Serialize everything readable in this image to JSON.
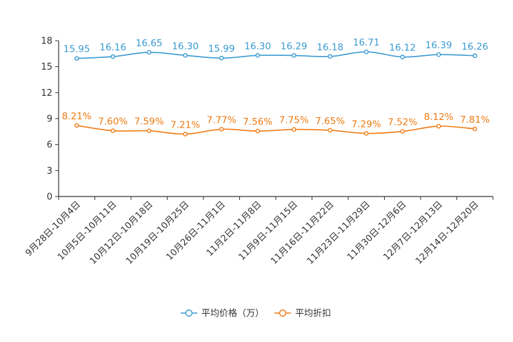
{
  "chart_data": {
    "type": "line",
    "categories": [
      "9月28日-10月4日",
      "10月5日-10月11日",
      "10月12日-10月18日",
      "10月19日-10月25日",
      "10月26日-11月1日",
      "11月2日-11月8日",
      "11月9日-11月15日",
      "11月16日-11月22日",
      "11月23日-11月29日",
      "11月30日-12月6日",
      "12月7日-12月13日",
      "12月14日-12月20日"
    ],
    "series": [
      {
        "name": "平均价格（万）",
        "color": "#3a9ad1",
        "values": [
          15.95,
          16.16,
          16.65,
          16.3,
          15.99,
          16.3,
          16.29,
          16.18,
          16.71,
          16.12,
          16.39,
          16.26
        ],
        "labels": [
          "15.95",
          "16.16",
          "16.65",
          "16.30",
          "15.99",
          "16.30",
          "16.29",
          "16.18",
          "16.71",
          "16.12",
          "16.39",
          "16.26"
        ]
      },
      {
        "name": "平均折扣",
        "color": "#f07a12",
        "values": [
          8.21,
          7.6,
          7.59,
          7.21,
          7.77,
          7.56,
          7.75,
          7.65,
          7.29,
          7.52,
          8.12,
          7.81
        ],
        "labels": [
          "8.21%",
          "7.60%",
          "7.59%",
          "7.21%",
          "7.77%",
          "7.56%",
          "7.75%",
          "7.65%",
          "7.29%",
          "7.52%",
          "8.12%",
          "7.81%"
        ]
      }
    ],
    "yticks": [
      0,
      3,
      6,
      9,
      12,
      15,
      18
    ],
    "ylim": [
      0,
      18
    ],
    "legend_position": "bottom-center",
    "grid": false
  }
}
